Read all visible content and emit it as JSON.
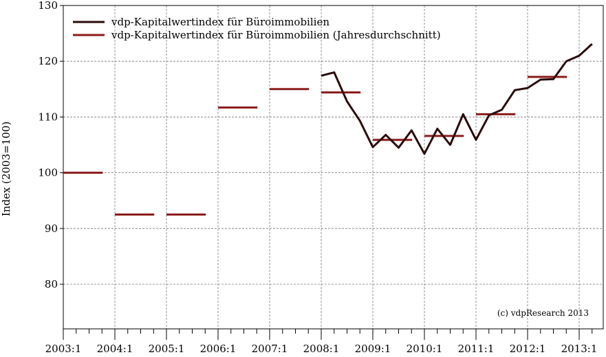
{
  "chart_data": {
    "type": "line",
    "title": "",
    "xlabel": "",
    "ylabel": "Index (2003=100)",
    "ylim": [
      72,
      130
    ],
    "y_ticks": [
      80,
      90,
      100,
      110,
      120,
      130
    ],
    "x_tick_labels": [
      "2003:1",
      "2004:1",
      "2005:1",
      "2006:1",
      "2007:1",
      "2008:1",
      "2009:1",
      "2010:1",
      "2011:1",
      "2012:1",
      "2013:1"
    ],
    "grid": true,
    "legend_position": "top-left",
    "annotation": "(c) vdpResearch 2013",
    "colors": {
      "quarterly": "#2a0a0a",
      "annual": "#8b1a1a",
      "grid": "#777777"
    },
    "series": [
      {
        "name": "vdp-Kapitalwertindex für Büroimmobilien",
        "style": "line",
        "x": [
          "2008:1",
          "2008:2",
          "2008:3",
          "2008:4",
          "2009:1",
          "2009:2",
          "2009:3",
          "2009:4",
          "2010:1",
          "2010:2",
          "2010:3",
          "2010:4",
          "2011:1",
          "2011:2",
          "2011:3",
          "2011:4",
          "2012:1",
          "2012:2",
          "2012:3",
          "2012:4",
          "2013:1",
          "2013:2"
        ],
        "values": [
          117.4,
          118.0,
          112.8,
          109.3,
          104.6,
          106.8,
          104.5,
          107.6,
          103.4,
          107.9,
          105.0,
          110.5,
          105.9,
          110.3,
          111.3,
          114.8,
          115.2,
          116.7,
          116.8,
          120.0,
          121.0,
          123.1
        ]
      },
      {
        "name": "vdp-Kapitalwertindex für Büroimmobilien (Jahresdurchschnitt)",
        "style": "annual-average",
        "x": [
          "2003",
          "2004",
          "2005",
          "2006",
          "2007",
          "2008",
          "2009",
          "2010",
          "2011",
          "2012"
        ],
        "values": [
          100.0,
          92.5,
          92.5,
          111.7,
          115.0,
          114.4,
          105.9,
          106.6,
          110.5,
          117.2
        ]
      }
    ]
  }
}
